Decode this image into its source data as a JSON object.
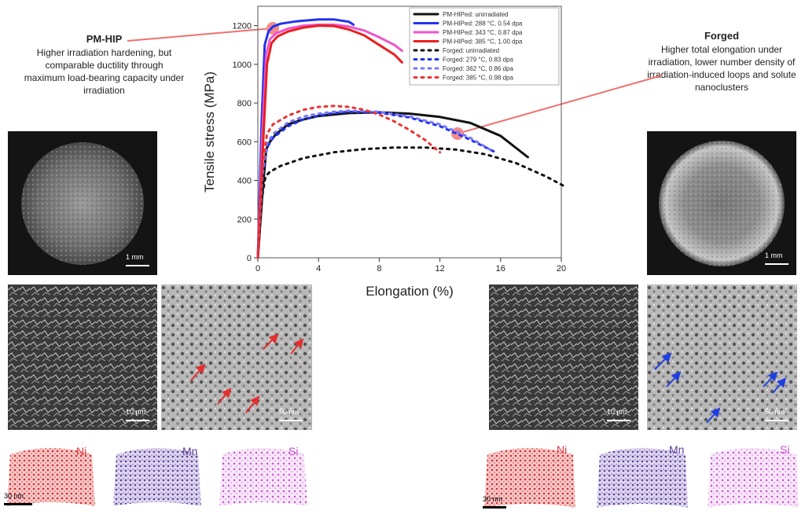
{
  "annotations": {
    "pmhip": {
      "title": "PM-HIP",
      "body": "Higher irradiation hardening, but comparable ductility through maximum load-bearing capacity under irradiation"
    },
    "forged": {
      "title": "Forged",
      "body": "Higher total elongation under irradiation, lower number density of irradiation-induced loops and solute nanoclusters"
    }
  },
  "scale_bars": {
    "pmhip_fracture": "1 mm",
    "forged_fracture": "1 mm",
    "pmhip_sem": "10 µm",
    "pmhip_tem": "50 nm",
    "forged_sem": "10 µm",
    "forged_tem": "50 nm",
    "pmhip_apt": "30 nm",
    "forged_apt": "30 nm"
  },
  "apt_labels": {
    "ni": "Ni",
    "mn": "Mn",
    "si": "Si"
  },
  "colors": {
    "ni": "#e8333a",
    "mn": "#5a3d9a",
    "si": "#c64ad6",
    "connector": "#f07070",
    "arrow_red": "#e23030",
    "arrow_blue": "#1f3fe0"
  },
  "chart_data": {
    "type": "line",
    "xlabel": "Elongation (%)",
    "ylabel": "Tensile stress (MPa)",
    "xlim": [
      0,
      20
    ],
    "ylim": [
      0,
      1300
    ],
    "xticks": [
      0,
      4,
      8,
      12,
      16,
      20
    ],
    "yticks": [
      0,
      200,
      400,
      600,
      800,
      1000,
      1200
    ],
    "grid": false,
    "legend_position": "top-right",
    "series": [
      {
        "name": "PM-HIPed: unirradiated",
        "color": "#111111",
        "style": "solid",
        "x": [
          0,
          0.3,
          0.55,
          0.8,
          1.2,
          2,
          3,
          4,
          6,
          8,
          10,
          12,
          14,
          16,
          17.8
        ],
        "y": [
          0,
          330,
          560,
          600,
          640,
          690,
          715,
          733,
          748,
          752,
          745,
          728,
          697,
          630,
          520
        ]
      },
      {
        "name": "PM-HIPed: 288 °C, 0.54 dpa",
        "color": "#2233ee",
        "style": "solid",
        "x": [
          0,
          0.25,
          0.45,
          0.7,
          1,
          1.5,
          2.5,
          4,
          5,
          6,
          6.3
        ],
        "y": [
          0,
          700,
          1100,
          1170,
          1195,
          1210,
          1222,
          1232,
          1232,
          1220,
          1205
        ]
      },
      {
        "name": "PM-HIPed: 343 °C, 0.87 dpa",
        "color": "#ee55cc",
        "style": "solid",
        "x": [
          0,
          0.3,
          0.55,
          0.8,
          1.2,
          2,
          3,
          4,
          5,
          6,
          7,
          8,
          9,
          9.5
        ],
        "y": [
          0,
          650,
          1050,
          1130,
          1160,
          1185,
          1200,
          1205,
          1205,
          1195,
          1175,
          1140,
          1100,
          1070
        ]
      },
      {
        "name": "PM-HIPed: 385 °C, 1.00 dpa",
        "color": "#e82020",
        "style": "solid",
        "x": [
          0,
          0.35,
          0.6,
          0.9,
          1.3,
          2,
          3,
          4,
          5,
          6,
          7,
          8,
          9,
          9.5
        ],
        "y": [
          0,
          600,
          1000,
          1110,
          1145,
          1170,
          1190,
          1200,
          1198,
          1180,
          1150,
          1100,
          1050,
          1010
        ]
      },
      {
        "name": "Forged: unirradiated",
        "color": "#111111",
        "style": "dashed",
        "x": [
          0,
          0.25,
          0.5,
          0.8,
          1.5,
          3,
          5,
          7,
          9,
          11,
          13,
          15,
          17,
          19,
          20.2
        ],
        "y": [
          0,
          300,
          420,
          445,
          475,
          515,
          545,
          562,
          570,
          570,
          560,
          535,
          490,
          420,
          370
        ]
      },
      {
        "name": "Forged: 279 °C, 0.83 dpa",
        "color": "#2233ee",
        "style": "dashed",
        "x": [
          0,
          0.3,
          0.6,
          1,
          2,
          3,
          4,
          5,
          6,
          8,
          10,
          12,
          14,
          15.8
        ],
        "y": [
          0,
          420,
          570,
          620,
          680,
          715,
          735,
          748,
          755,
          750,
          725,
          680,
          610,
          540
        ]
      },
      {
        "name": "Forged: 362 °C, 0.86 dpa",
        "color": "#7777ff",
        "style": "dashed",
        "x": [
          0,
          0.3,
          0.6,
          1,
          2,
          3,
          4,
          5,
          6,
          8,
          10,
          12,
          14,
          15.5
        ],
        "y": [
          0,
          430,
          590,
          640,
          700,
          730,
          745,
          755,
          760,
          755,
          730,
          690,
          620,
          550
        ]
      },
      {
        "name": "Forged: 385 °C, 0.98 dpa",
        "color": "#ee3333",
        "style": "dashed",
        "x": [
          0,
          0.3,
          0.6,
          1,
          2,
          3,
          4,
          5,
          6,
          7,
          8,
          9,
          10,
          11,
          12
        ],
        "y": [
          0,
          470,
          640,
          690,
          735,
          765,
          780,
          785,
          780,
          765,
          740,
          705,
          660,
          610,
          545
        ]
      }
    ]
  }
}
